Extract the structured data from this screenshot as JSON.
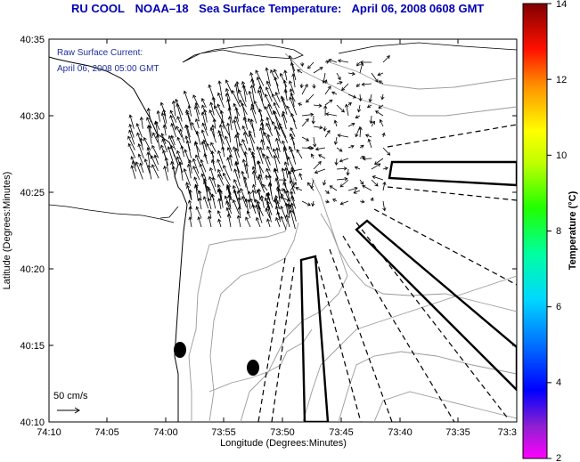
{
  "title": {
    "parts": [
      "RU COOL",
      "NOAA–18",
      "Sea Surface Temperature:",
      "April 06, 2008 0608 GMT"
    ]
  },
  "overlay": {
    "line1": "Raw Surface Current:",
    "line2": "April 06, 2008 05:00 GMT",
    "scale_label": "50 cm/s"
  },
  "axes": {
    "xlabel": "Longitude (Degrees:Minutes)",
    "ylabel": "Latitude (Degrees:Minutes)",
    "xticks": [
      "74:10",
      "74:05",
      "74:00",
      "73:55",
      "73:50",
      "73:45",
      "73:40",
      "73:35",
      "73:3"
    ],
    "yticks": [
      "40:35",
      "40:30",
      "40:25",
      "40:20",
      "40:15",
      "40:10"
    ]
  },
  "colorbar": {
    "label": "Temperature (°C)",
    "ticks": [
      "14",
      "12",
      "10",
      "8",
      "6",
      "4",
      "2"
    ],
    "min": 2,
    "max": 14,
    "colors": [
      "#ff00ff",
      "#7f20c8",
      "#0000ff",
      "#0060ff",
      "#00d0ff",
      "#00ffb0",
      "#00ff00",
      "#a0ff00",
      "#ffff00",
      "#ffb000",
      "#ff6000",
      "#ff0000",
      "#c00000",
      "#800000"
    ]
  }
}
